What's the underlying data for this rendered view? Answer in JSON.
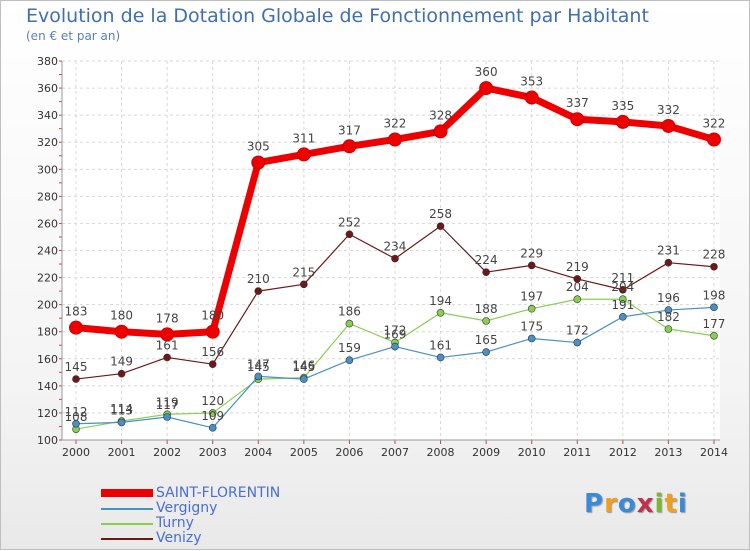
{
  "title": "Evolution de la Dotation Globale de Fonctionnement par Habitant",
  "subtitle": "(en € et par an)",
  "brand": {
    "letters": [
      "P",
      "r",
      "o",
      "x",
      "i",
      "t",
      "i"
    ],
    "colors": [
      "#3a8ad8",
      "#f0a020",
      "#3a8ad8",
      "#c03050",
      "#7ab830",
      "#f0a020",
      "#3a8ad8"
    ]
  },
  "chart_data": {
    "type": "line",
    "title": "Evolution de la Dotation Globale de Fonctionnement par Habitant",
    "subtitle": "(en € et par an)",
    "xlabel": "",
    "ylabel": "",
    "ylim": [
      100,
      380
    ],
    "yticks": [
      100,
      120,
      140,
      160,
      180,
      200,
      220,
      240,
      260,
      280,
      300,
      320,
      340,
      360,
      380
    ],
    "categories": [
      "2000",
      "2001",
      "2002",
      "2003",
      "2004",
      "2005",
      "2006",
      "2007",
      "2008",
      "2009",
      "2010",
      "2011",
      "2012",
      "2013",
      "2014"
    ],
    "legend_position": "bottom-left",
    "series": [
      {
        "name": "SAINT-FLORENTIN",
        "color": "#ee0000",
        "values": [
          183,
          180,
          178,
          180,
          305,
          311,
          317,
          322,
          328,
          360,
          353,
          337,
          335,
          332,
          322
        ]
      },
      {
        "name": "Vergigny",
        "color": "#4a90c8",
        "values": [
          112,
          113,
          117,
          109,
          147,
          145,
          159,
          169,
          161,
          165,
          175,
          172,
          191,
          196,
          198
        ]
      },
      {
        "name": "Turny",
        "color": "#88d050",
        "values": [
          108,
          114,
          119,
          120,
          145,
          146,
          186,
          172,
          194,
          188,
          197,
          204,
          204,
          182,
          177
        ]
      },
      {
        "name": "Venizy",
        "color": "#701818",
        "values": [
          145,
          149,
          161,
          156,
          210,
          215,
          252,
          234,
          258,
          224,
          229,
          219,
          211,
          231,
          228
        ]
      }
    ]
  }
}
